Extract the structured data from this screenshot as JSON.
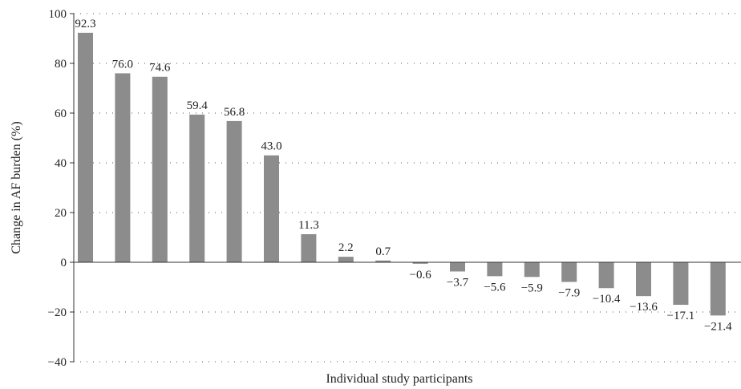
{
  "chart_data": {
    "type": "bar",
    "xlabel": "Individual study participants",
    "ylabel": "Change in AF burden (%)",
    "ylim": [
      -40,
      100
    ],
    "yticks": [
      100,
      80,
      60,
      40,
      20,
      0,
      -20,
      -40
    ],
    "ytick_labels": [
      "100",
      "80",
      "60",
      "40",
      "20",
      "0",
      "−20",
      "−40"
    ],
    "grid": "dotted horizontal",
    "bar_color": "#8c8c8c",
    "values": [
      92.3,
      76.0,
      74.6,
      59.4,
      56.8,
      43.0,
      11.3,
      2.2,
      0.7,
      -0.6,
      -3.7,
      -5.6,
      -5.9,
      -7.9,
      -10.4,
      -13.6,
      -17.1,
      -21.4
    ],
    "labels": [
      "92.3",
      "76.0",
      "74.6",
      "59.4",
      "56.8",
      "43.0",
      "11.3",
      "2.2",
      "0.7",
      "−0.6",
      "−3.7",
      "−5.6",
      "−5.9",
      "−7.9",
      "−10.4",
      "−13.6",
      "−17.1",
      "−21.4"
    ]
  }
}
